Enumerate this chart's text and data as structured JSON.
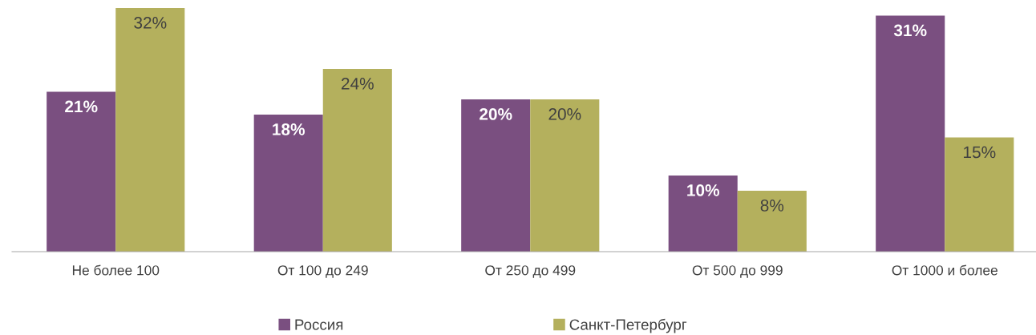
{
  "chart_data": {
    "type": "bar",
    "categories": [
      "Не более 100",
      "От 100 до 249",
      "От 250 до 499",
      "От 500 до 999",
      "От 1000 и более"
    ],
    "series": [
      {
        "name": "Россия",
        "color": "#7a4f80",
        "values": [
          21,
          18,
          20,
          10,
          31
        ],
        "value_labels": [
          "21%",
          "18%",
          "20%",
          "10%",
          "31%"
        ]
      },
      {
        "name": "Санкт-Петербург",
        "color": "#b4b05d",
        "values": [
          32,
          24,
          20,
          8,
          15
        ],
        "value_labels": [
          "32%",
          "24%",
          "20%",
          "8%",
          "15%"
        ]
      }
    ],
    "legend": "bottom",
    "grid": false
  }
}
